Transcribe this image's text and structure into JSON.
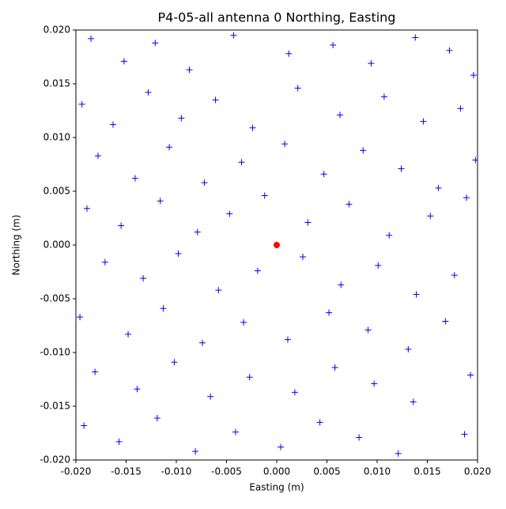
{
  "chart_data": {
    "type": "scatter",
    "title": "P4-05-all antenna 0 Northing, Easting",
    "x_label": "Easting (m)",
    "y_label": "Northing (m)",
    "xlim": [
      -0.02,
      0.02
    ],
    "ylim": [
      -0.02,
      0.02
    ],
    "xticks": [
      {
        "value": -0.02,
        "label": "-0.020"
      },
      {
        "value": -0.015,
        "label": "-0.015"
      },
      {
        "value": -0.01,
        "label": "-0.010"
      },
      {
        "value": -0.005,
        "label": "-0.005"
      },
      {
        "value": 0,
        "label": "0.000"
      },
      {
        "value": 0.005,
        "label": "0.005"
      },
      {
        "value": 0.01,
        "label": "0.010"
      },
      {
        "value": 0.015,
        "label": "0.015"
      },
      {
        "value": 0.02,
        "label": "0.020"
      }
    ],
    "yticks": [
      {
        "value": -0.02,
        "label": "-0.020"
      },
      {
        "value": -0.015,
        "label": "-0.015"
      },
      {
        "value": -0.01,
        "label": "-0.010"
      },
      {
        "value": -0.005,
        "label": "-0.005"
      },
      {
        "value": 0,
        "label": "0.000"
      },
      {
        "value": 0.005,
        "label": "0.005"
      },
      {
        "value": 0.01,
        "label": "0.010"
      },
      {
        "value": 0.015,
        "label": "0.015"
      },
      {
        "value": 0.02,
        "label": "0.020"
      }
    ],
    "series": [
      {
        "color": "#0000ff",
        "marker": "plus",
        "x": [
          -0.0185,
          -0.0152,
          -0.0121,
          -0.0087,
          -0.0043,
          0.0012,
          0.0056,
          0.0094,
          0.0138,
          0.0172,
          0.0196,
          -0.0194,
          -0.0163,
          -0.0128,
          -0.0095,
          -0.0061,
          -0.0024,
          0.0021,
          0.0063,
          0.0107,
          0.0146,
          0.0183,
          -0.0178,
          -0.0141,
          -0.0107,
          -0.0072,
          -0.0035,
          0.0008,
          0.0047,
          0.0086,
          0.0124,
          0.0161,
          0.0198,
          -0.0189,
          -0.0155,
          -0.0116,
          -0.0079,
          -0.0047,
          -0.0012,
          0.0031,
          0.0072,
          0.0112,
          0.0153,
          0.0189,
          -0.0171,
          -0.0133,
          -0.0098,
          -0.0058,
          -0.0019,
          0.0026,
          0.0064,
          0.0101,
          0.0139,
          0.0177,
          -0.0196,
          -0.0148,
          -0.0113,
          -0.0074,
          -0.0033,
          0.0011,
          0.0052,
          0.0091,
          0.0131,
          0.0168,
          -0.0181,
          -0.0139,
          -0.0102,
          -0.0066,
          -0.0027,
          0.0018,
          0.0058,
          0.0097,
          0.0136,
          0.0193,
          -0.0192,
          -0.0157,
          -0.0119,
          -0.0081,
          -0.0041,
          0.0004,
          0.0043,
          0.0082,
          0.0121,
          0.0187
        ],
        "values": [
          0.0192,
          0.0171,
          0.0188,
          0.0163,
          0.0195,
          0.0178,
          0.0186,
          0.0169,
          0.0193,
          0.0181,
          0.0158,
          0.0131,
          0.0112,
          0.0142,
          0.0118,
          0.0135,
          0.0109,
          0.0146,
          0.0121,
          0.0138,
          0.0115,
          0.0127,
          0.0083,
          0.0062,
          0.0091,
          0.0058,
          0.0077,
          0.0094,
          0.0066,
          0.0088,
          0.0071,
          0.0053,
          0.0079,
          0.0034,
          0.0018,
          0.0041,
          0.0012,
          0.0029,
          0.0046,
          0.0021,
          0.0038,
          0.0009,
          0.0027,
          0.0044,
          -0.0016,
          -0.0031,
          -0.0008,
          -0.0042,
          -0.0024,
          -0.0011,
          -0.0037,
          -0.0019,
          -0.0046,
          -0.0028,
          -0.0067,
          -0.0083,
          -0.0059,
          -0.0091,
          -0.0072,
          -0.0088,
          -0.0063,
          -0.0079,
          -0.0097,
          -0.0071,
          -0.0118,
          -0.0134,
          -0.0109,
          -0.0141,
          -0.0123,
          -0.0137,
          -0.0114,
          -0.0129,
          -0.0146,
          -0.0121,
          -0.0168,
          -0.0183,
          -0.0161,
          -0.0192,
          -0.0174,
          -0.0188,
          -0.0165,
          -0.0179,
          -0.0194,
          -0.0176
        ]
      },
      {
        "color": "#ff0000",
        "marker": "circle",
        "x": [
          0
        ],
        "values": [
          0
        ]
      }
    ]
  }
}
